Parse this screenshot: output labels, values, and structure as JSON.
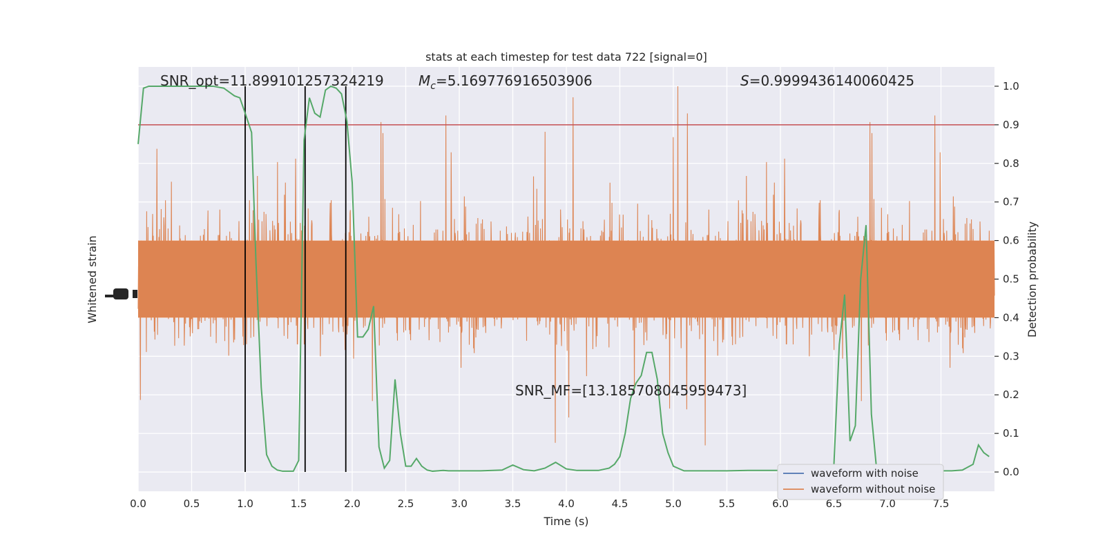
{
  "chart_data": {
    "type": "line",
    "title": "stats at each timestep for test data 722 [signal=0]",
    "xlabel": "Time (s)",
    "ylabel_left": "Whitened strain",
    "ylabel_right": "Detection probability",
    "xlim": [
      0,
      8
    ],
    "ylim_right": [
      -0.05,
      1.05
    ],
    "x_ticks": [
      "0.0",
      "0.5",
      "1.0",
      "1.5",
      "2.0",
      "2.5",
      "3.0",
      "3.5",
      "4.0",
      "4.5",
      "5.0",
      "5.5",
      "6.0",
      "6.5",
      "7.0",
      "7.5"
    ],
    "x_tick_values": [
      0,
      0.5,
      1,
      1.5,
      2,
      2.5,
      3,
      3.5,
      4,
      4.5,
      5,
      5.5,
      6,
      6.5,
      7,
      7.5
    ],
    "y_right_ticks": [
      "0.0",
      "0.1",
      "0.2",
      "0.3",
      "0.4",
      "0.5",
      "0.6",
      "0.7",
      "0.8",
      "0.9",
      "1.0"
    ],
    "y_right_tick_values": [
      0,
      0.1,
      0.2,
      0.3,
      0.4,
      0.5,
      0.6,
      0.7,
      0.8,
      0.9,
      1.0
    ],
    "grid": true,
    "legend_position": "lower-right",
    "annotations": {
      "snr_opt": "SNR_opt=11.899101257324219",
      "mc_symbol": "M",
      "mc_sub": "c",
      "mc_value": "=5.169776916503906",
      "s_symbol": "S",
      "s_value": "=0.9999436140060425",
      "snr_mf": "SNR_MF=[13.185708045959473]"
    },
    "threshold": 0.9,
    "vertical_lines_x": [
      1.0,
      1.56,
      1.94
    ],
    "series": [
      {
        "name": "waveform with noise",
        "color": "#4c72b0",
        "values": []
      },
      {
        "name": "waveform without noise",
        "color": "#dd8452",
        "note_range": "whitened noise band roughly between 0.3 and 0.7 on right axis, spikes to ~0.0–1.0"
      },
      {
        "name": "detection probability",
        "color": "#55a868",
        "x": [
          0,
          0.05,
          0.1,
          0.2,
          0.3,
          0.4,
          0.5,
          0.6,
          0.7,
          0.8,
          0.9,
          0.95,
          1.0,
          1.06,
          1.1,
          1.15,
          1.2,
          1.25,
          1.3,
          1.35,
          1.4,
          1.45,
          1.5,
          1.55,
          1.6,
          1.65,
          1.7,
          1.75,
          1.8,
          1.85,
          1.9,
          1.95,
          2.0,
          2.05,
          2.1,
          2.15,
          2.2,
          2.25,
          2.3,
          2.35,
          2.4,
          2.45,
          2.5,
          2.55,
          2.6,
          2.65,
          2.7,
          2.75,
          2.8,
          2.85,
          2.9,
          3.0,
          3.2,
          3.4,
          3.5,
          3.6,
          3.7,
          3.8,
          3.9,
          4.0,
          4.1,
          4.2,
          4.3,
          4.4,
          4.45,
          4.5,
          4.55,
          4.6,
          4.65,
          4.7,
          4.75,
          4.8,
          4.85,
          4.9,
          4.95,
          5.0,
          5.1,
          5.3,
          5.5,
          5.7,
          5.9,
          6.1,
          6.3,
          6.45,
          6.5,
          6.55,
          6.6,
          6.65,
          6.7,
          6.75,
          6.8,
          6.85,
          6.9,
          6.95,
          7.0,
          7.2,
          7.4,
          7.6,
          7.7,
          7.8,
          7.85,
          7.9,
          7.95
        ],
        "values": [
          0.85,
          0.995,
          1.0,
          1.0,
          1.0,
          1.0,
          1.0,
          1.0,
          1.0,
          0.995,
          0.975,
          0.97,
          0.93,
          0.88,
          0.55,
          0.22,
          0.045,
          0.015,
          0.005,
          0.002,
          0.002,
          0.002,
          0.03,
          0.86,
          0.97,
          0.93,
          0.92,
          0.99,
          1.0,
          0.995,
          0.98,
          0.91,
          0.75,
          0.35,
          0.35,
          0.37,
          0.43,
          0.065,
          0.01,
          0.03,
          0.24,
          0.1,
          0.015,
          0.015,
          0.035,
          0.015,
          0.005,
          0.002,
          0.003,
          0.004,
          0.003,
          0.003,
          0.003,
          0.005,
          0.018,
          0.006,
          0.003,
          0.01,
          0.025,
          0.008,
          0.004,
          0.004,
          0.004,
          0.01,
          0.02,
          0.04,
          0.1,
          0.19,
          0.23,
          0.25,
          0.31,
          0.31,
          0.24,
          0.1,
          0.05,
          0.015,
          0.003,
          0.003,
          0.003,
          0.004,
          0.004,
          0.004,
          0.003,
          0.003,
          0.02,
          0.33,
          0.46,
          0.08,
          0.12,
          0.5,
          0.64,
          0.15,
          0.003,
          0.003,
          0.003,
          0.003,
          0.003,
          0.003,
          0.005,
          0.02,
          0.07,
          0.05,
          0.04
        ]
      },
      {
        "name": "threshold",
        "color": "#c44e52",
        "value": 0.9
      }
    ]
  }
}
